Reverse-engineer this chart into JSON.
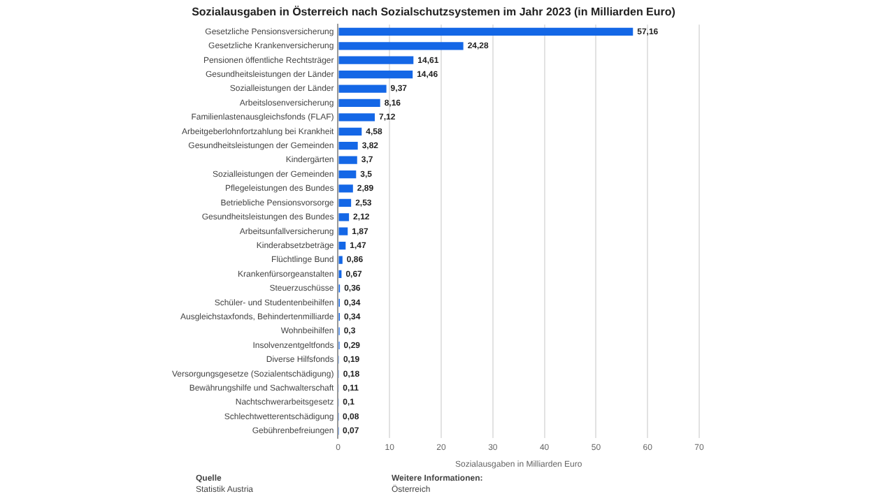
{
  "chart_data": {
    "type": "bar",
    "orientation": "horizontal",
    "title": "Sozialausgaben in Österreich nach Sozialschutzsystemen im Jahr 2023 (in Milliarden Euro)",
    "xlabel": "Sozialausgaben in Milliarden Euro",
    "categories": [
      "Gesetzliche Pensionsversicherung",
      "Gesetzliche Krankenversicherung",
      "Pensionen öffentliche Rechtsträger",
      "Gesundheitsleistungen der Länder",
      "Sozialleistungen der Länder",
      "Arbeitslosenversicherung",
      "Familienlastenausgleichsfonds (FLAF)",
      "Arbeitgeberlohnfortzahlung bei Krankheit",
      "Gesundheitsleistungen der Gemeinden",
      "Kindergärten",
      "Sozialleistungen der Gemeinden",
      "Pflegeleistungen des Bundes",
      "Betriebliche Pensionsvorsorge",
      "Gesundheitsleistungen des Bundes",
      "Arbeitsunfallversicherung",
      "Kinderabsetzbeträge",
      "Flüchtlinge Bund",
      "Krankenfürsorgeanstalten",
      "Steuerzuschüsse",
      "Schüler- und Studentenbeihilfen",
      "Ausgleichstaxfonds, Behindertenmilliarde",
      "Wohnbeihilfen",
      "Insolvenzentgeltfonds",
      "Diverse Hilfsfonds",
      "Versorgungsgesetze (Sozialentschädigung)",
      "Bewährungshilfe und Sachwalterschaft",
      "Nachtschwerarbeitsgesetz",
      "Schlechtwetterentschädigung",
      "Gebührenbefreiungen"
    ],
    "values": [
      57.16,
      24.28,
      14.61,
      14.46,
      9.37,
      8.16,
      7.12,
      4.58,
      3.82,
      3.7,
      3.5,
      2.89,
      2.53,
      2.12,
      1.87,
      1.47,
      0.86,
      0.67,
      0.36,
      0.34,
      0.34,
      0.3,
      0.29,
      0.19,
      0.18,
      0.11,
      0.1,
      0.08,
      0.07
    ],
    "value_labels": [
      "57,16",
      "24,28",
      "14,61",
      "14,46",
      "9,37",
      "8,16",
      "7,12",
      "4,58",
      "3,82",
      "3,7",
      "3,5",
      "2,89",
      "2,53",
      "2,12",
      "1,87",
      "1,47",
      "0,86",
      "0,67",
      "0,36",
      "0,34",
      "0,34",
      "0,3",
      "0,29",
      "0,19",
      "0,18",
      "0,11",
      "0,1",
      "0,08",
      "0,07"
    ],
    "color": "#1467e6",
    "xlim": [
      0,
      70
    ],
    "xticks": [
      0,
      10,
      20,
      30,
      40,
      50,
      60,
      70
    ],
    "grid": "x",
    "annotations": [
      "Quelle",
      "Statistik Austria",
      "Weitere Informationen:",
      "Österreich"
    ]
  }
}
